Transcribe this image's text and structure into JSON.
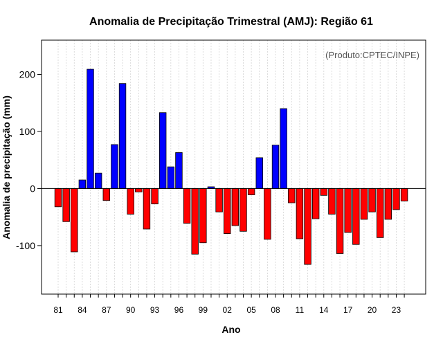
{
  "chart_data": {
    "type": "bar",
    "title": "Anomalia de Precipitação Trimestral (AMJ): Região 61",
    "xlabel": "Ano",
    "ylabel": "Anomalia de precipitação (mm)",
    "credit": "(Produto:CPTEC/INPE)",
    "ylim": [
      -185,
      260
    ],
    "yticks": [
      -100,
      0,
      100,
      200
    ],
    "grid": true,
    "positive_color": "#0000ff",
    "negative_color": "#ff0000",
    "tick_labels": [
      "81",
      "84",
      "87",
      "90",
      "93",
      "96",
      "99",
      "02",
      "05",
      "08",
      "11",
      "14",
      "17",
      "20",
      "23"
    ],
    "years": [
      1981,
      1982,
      1983,
      1984,
      1985,
      1986,
      1987,
      1988,
      1989,
      1990,
      1991,
      1992,
      1993,
      1994,
      1995,
      1996,
      1997,
      1998,
      1999,
      2000,
      2001,
      2002,
      2003,
      2004,
      2005,
      2006,
      2007,
      2008,
      2009,
      2010,
      2011,
      2012,
      2013,
      2014,
      2015,
      2016,
      2017,
      2018,
      2019,
      2020,
      2021,
      2022,
      2023,
      2024
    ],
    "values": [
      -32,
      -58,
      -111,
      15,
      209,
      27,
      -21,
      77,
      184,
      -45,
      -6,
      -71,
      -27,
      133,
      38,
      63,
      -61,
      -115,
      -95,
      3,
      -41,
      -79,
      -65,
      -75,
      -11,
      54,
      -89,
      76,
      140,
      -25,
      -88,
      -133,
      -53,
      -12,
      -45,
      -114,
      -77,
      -98,
      -54,
      -41,
      -86,
      -54,
      -37,
      -22
    ]
  }
}
